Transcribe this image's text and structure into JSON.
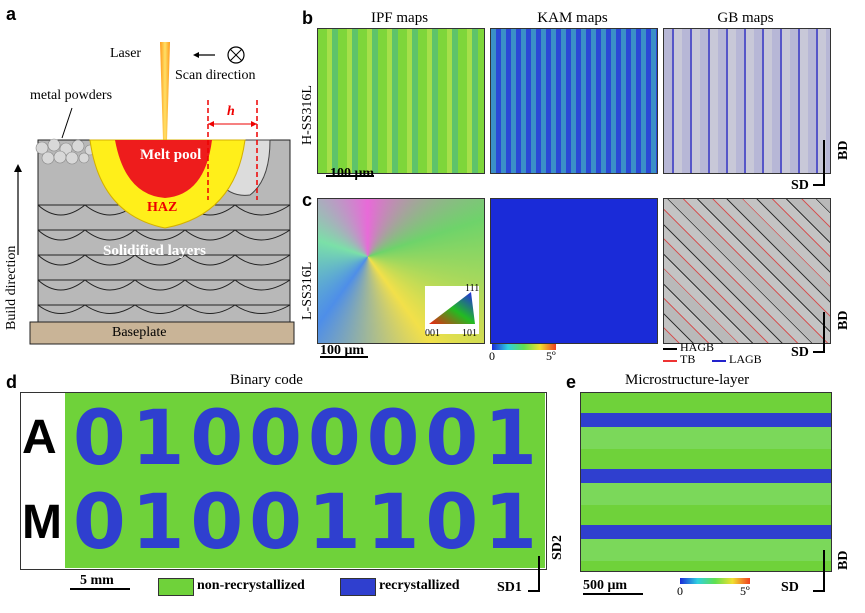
{
  "panels": {
    "a": "a",
    "b": "b",
    "c": "c",
    "d": "d",
    "e": "e"
  },
  "schematic": {
    "laser": "Laser",
    "scan_direction": "Scan direction",
    "metal_powders": "metal powders",
    "h": "h",
    "melt_pool": "Melt pool",
    "haz": "HAZ",
    "solidified_layers": "Solidified layers",
    "build_direction": "Build direction",
    "baseplate": "Baseplate"
  },
  "maps": {
    "col_titles": [
      "IPF maps",
      "KAM maps",
      "GB maps"
    ],
    "row_h": "H-SS316L",
    "row_l": "L-SS316L",
    "scale_b": "100 μm",
    "scale_c": "100 μm",
    "ipf_key": {
      "top": "111",
      "left": "001",
      "right": "101"
    },
    "kam_scale": {
      "min": "0",
      "max": "5º"
    },
    "gb_legend": {
      "hagb": "HAGB",
      "tb": "TB",
      "lagb": "LAGB"
    },
    "axes_b": {
      "bd": "BD",
      "sd": "SD"
    },
    "axes_c": {
      "bd": "BD",
      "sd": "SD"
    }
  },
  "binary": {
    "title": "Binary code",
    "row1_letter": "A",
    "row2_letter": "M",
    "row1_digits": [
      "0",
      "1",
      "0",
      "0",
      "0",
      "0",
      "0",
      "1"
    ],
    "row2_digits": [
      "0",
      "1",
      "0",
      "0",
      "1",
      "1",
      "0",
      "1"
    ],
    "scale": "5 mm",
    "legend_nonrecryst": "non-recrystallized",
    "legend_recryst": "recrystallized",
    "sd1": "SD1",
    "sd2": "SD2"
  },
  "layer": {
    "title": "Microstructure-layer",
    "scale": "500 μm",
    "kam_min": "0",
    "kam_max": "5º",
    "bd": "BD",
    "sd": "SD"
  },
  "colors": {
    "green": "#6fd23a",
    "blue": "#2f3fcf",
    "melt": "#ee1c1c",
    "haz": "#ffef1a"
  }
}
